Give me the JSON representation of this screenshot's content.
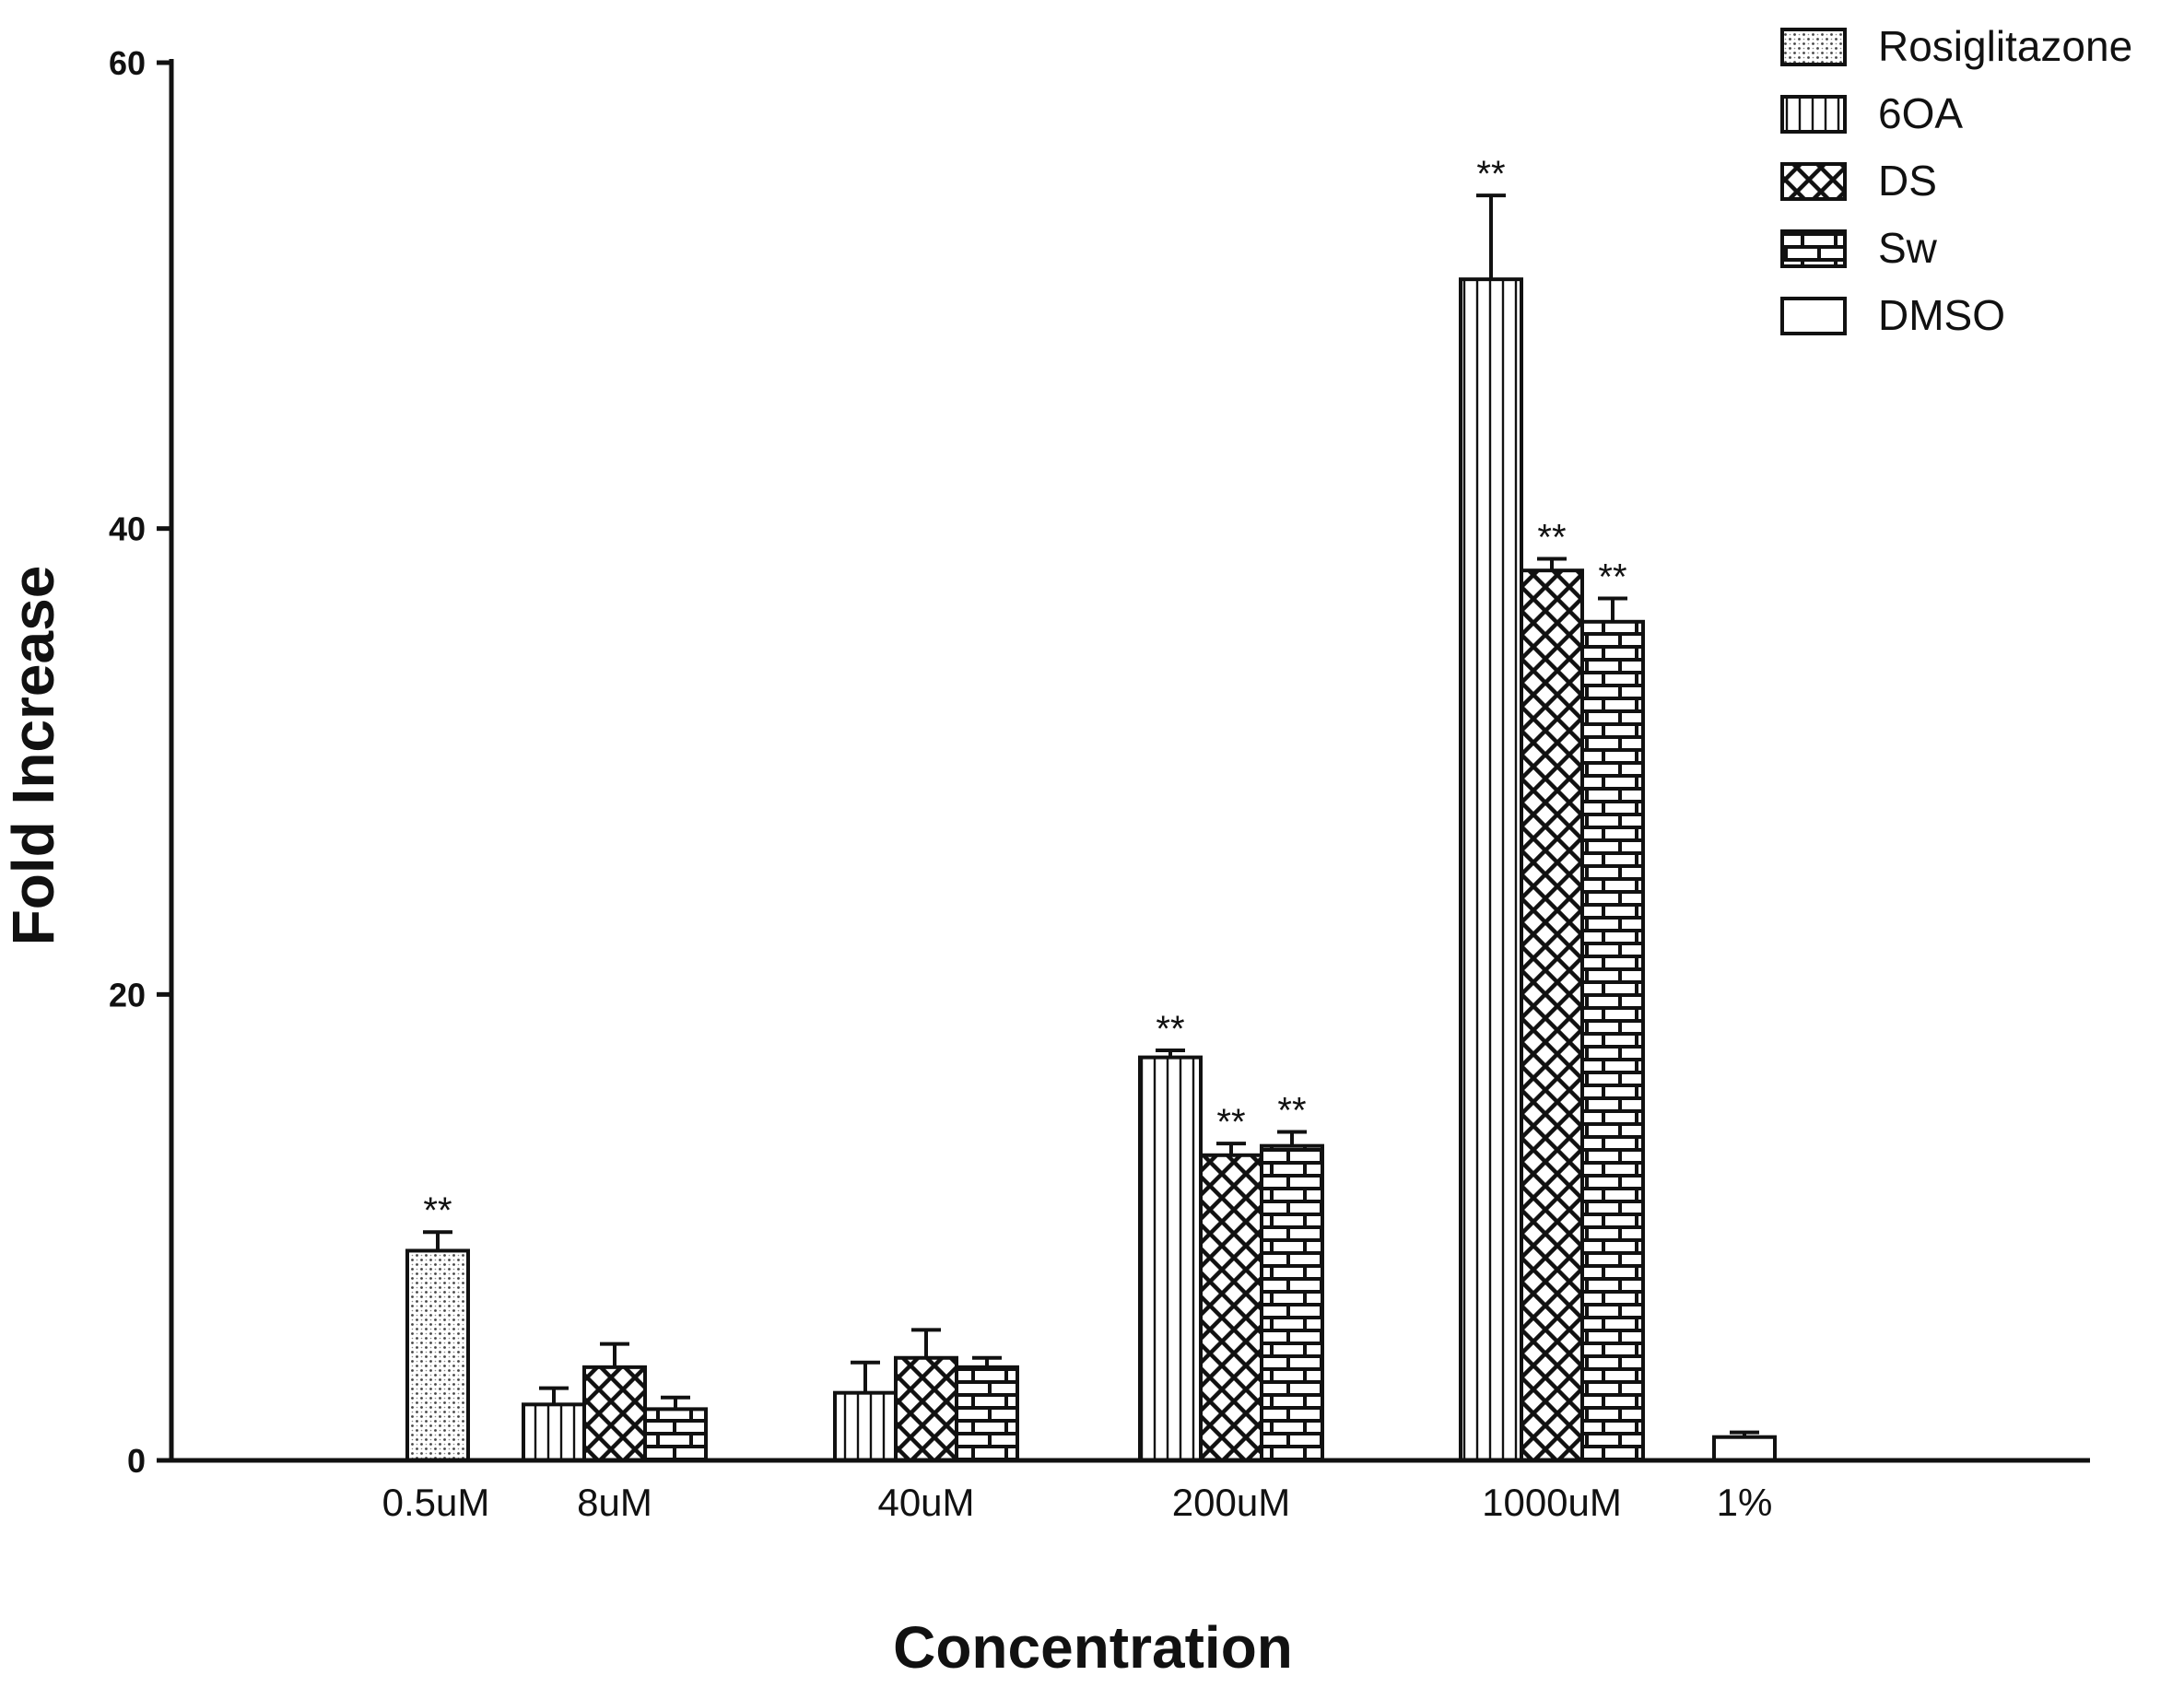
{
  "chart_data": {
    "type": "bar",
    "xlabel": "Concentration",
    "ylabel": "Fold Increase",
    "ylim": [
      0,
      60
    ],
    "yticks": [
      0,
      20,
      40,
      60
    ],
    "categories": [
      "0.5uM",
      "8uM",
      "40uM",
      "200uM",
      "1000uM",
      "1%"
    ],
    "series": [
      {
        "name": "Rosiglitazone",
        "pattern": "dots",
        "values": [
          9.0,
          null,
          null,
          null,
          null,
          null
        ],
        "errors": [
          0.8,
          null,
          null,
          null,
          null,
          null
        ],
        "significance": [
          "**",
          "",
          "",
          "",
          "",
          ""
        ]
      },
      {
        "name": "6OA",
        "pattern": "vertical-lines",
        "values": [
          null,
          2.4,
          2.9,
          17.3,
          50.7,
          null
        ],
        "errors": [
          null,
          0.7,
          1.3,
          0.3,
          3.6,
          null
        ],
        "significance": [
          "",
          "",
          "",
          "**",
          "**",
          ""
        ]
      },
      {
        "name": "DS",
        "pattern": "crosshatch",
        "values": [
          null,
          4.0,
          4.4,
          13.1,
          38.2,
          null
        ],
        "errors": [
          null,
          1.0,
          1.2,
          0.5,
          0.5,
          null
        ],
        "significance": [
          "",
          "",
          "",
          "**",
          "**",
          ""
        ]
      },
      {
        "name": "Sw",
        "pattern": "bricks",
        "values": [
          null,
          2.2,
          4.0,
          13.5,
          36.0,
          null
        ],
        "errors": [
          null,
          0.5,
          0.4,
          0.6,
          1.0,
          null
        ],
        "significance": [
          "",
          "",
          "",
          "**",
          "**",
          ""
        ]
      },
      {
        "name": "DMSO",
        "pattern": "empty",
        "values": [
          null,
          null,
          null,
          null,
          null,
          1.0
        ],
        "errors": [
          null,
          null,
          null,
          null,
          null,
          0.2
        ],
        "significance": [
          "",
          "",
          "",
          "",
          "",
          ""
        ]
      }
    ],
    "grid": false,
    "legend_position": "top-right",
    "colors": {
      "stroke": "#111111",
      "fill": "#ffffff"
    }
  }
}
